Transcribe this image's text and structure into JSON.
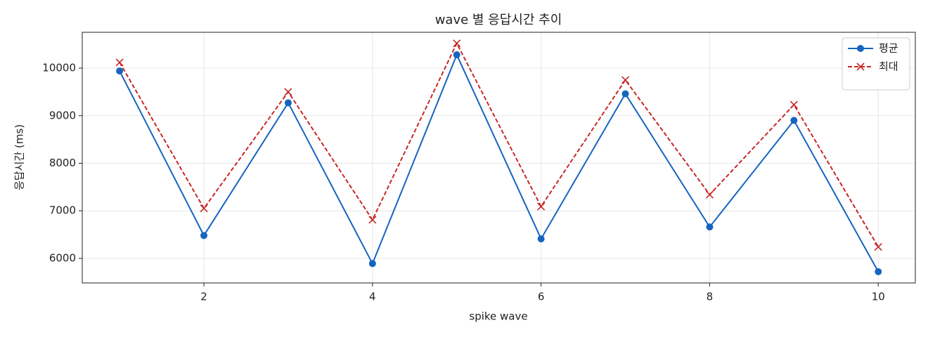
{
  "chart_data": {
    "type": "line",
    "title": "wave 별 응답시간 추이",
    "x_label": "spike wave",
    "y_label": "응답시간 (ms)",
    "x": [
      1,
      2,
      3,
      4,
      5,
      6,
      7,
      8,
      9,
      10
    ],
    "series": [
      {
        "name": "평균",
        "color": "#1565c0",
        "marker": "o",
        "linestyle": "solid",
        "values": [
          9940,
          6480,
          9270,
          5890,
          10280,
          6410,
          9460,
          6660,
          8900,
          5720
        ]
      },
      {
        "name": "최대",
        "color": "#c62828",
        "marker": "x",
        "linestyle": "dashed",
        "values": [
          10120,
          7050,
          9500,
          6810,
          10520,
          7090,
          9750,
          7340,
          9230,
          6240
        ]
      }
    ],
    "xlim": [
      0.557,
      10.44
    ],
    "ylim": [
      5483,
      10753
    ],
    "xticks": [
      2,
      4,
      6,
      8,
      10
    ],
    "yticks": [
      6000,
      7000,
      8000,
      9000,
      10000
    ],
    "grid": true,
    "legend": "upper right"
  }
}
